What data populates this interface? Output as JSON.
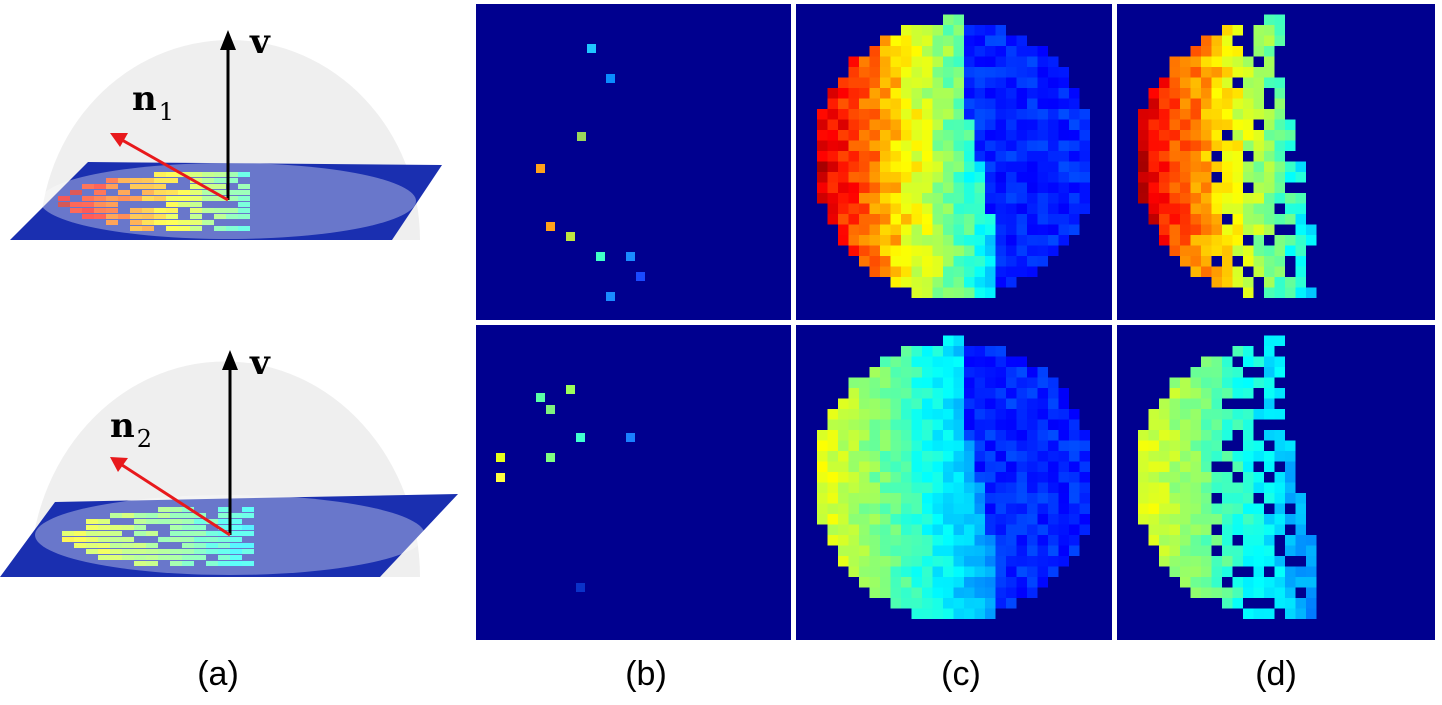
{
  "figure": {
    "captions": [
      "(a)",
      "(b)",
      "(c)",
      "(d)"
    ],
    "rows": [
      {
        "view_label": "v",
        "normal_label": "n",
        "normal_subscript": "1",
        "sparse_colors": [
          "#1fc6ff",
          "#0a8cff",
          "#9ad65c",
          "#ffa21a",
          "#ffa21a",
          "#bfe640",
          "#40ffc8",
          "#1a8cff",
          "#1a4aff",
          "#1a8cff"
        ],
        "dense_pattern": "hotleft",
        "masked_pattern": "hotleft"
      },
      {
        "view_label": "v",
        "normal_label": "n",
        "normal_subscript": "2",
        "sparse_colors": [
          "#9cff5a",
          "#5affa6",
          "#7ef27e",
          "#40ffd0",
          "#1a80ff",
          "#e6ff1a",
          "#80ff80",
          "#ffff40",
          "#0a32c8"
        ],
        "dense_pattern": "coolleft",
        "masked_pattern": "coolleft"
      }
    ]
  },
  "colors": {
    "background": "#00008f",
    "hemisphere": "#f0f0f0",
    "plane": "#1a2fb0",
    "normal_arrow": "#e8191c",
    "view_arrow": "#000000"
  }
}
